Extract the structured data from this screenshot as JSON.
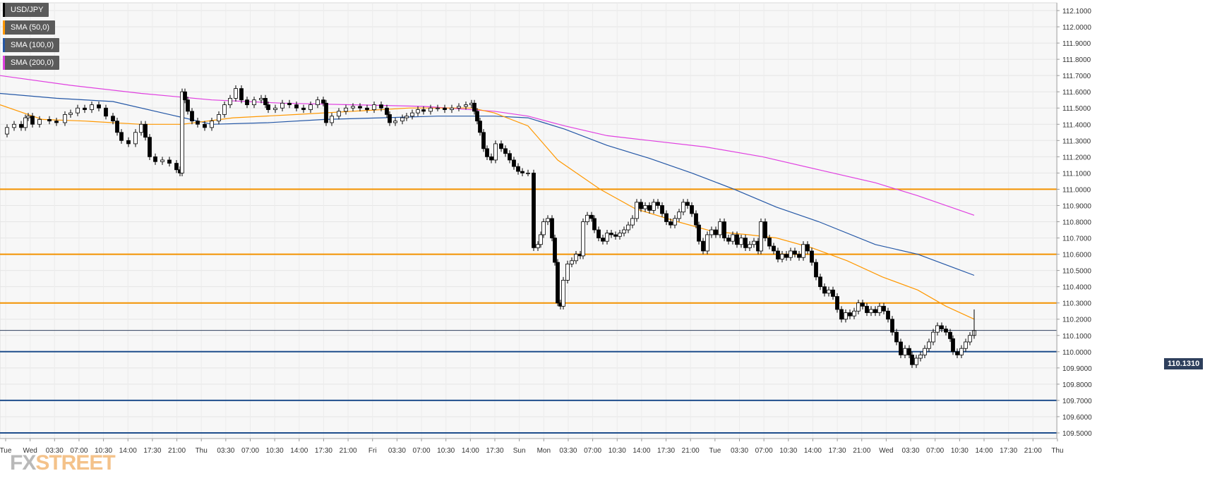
{
  "chart_data": {
    "type": "candlestick",
    "symbol": "USD/JPY",
    "last_price": "110.1310",
    "y_ticks": [
      "112.1000",
      "112.0000",
      "111.9000",
      "111.8000",
      "111.7000",
      "111.6000",
      "111.5000",
      "111.4000",
      "111.3000",
      "111.2000",
      "111.1000",
      "111.0000",
      "110.9000",
      "110.8000",
      "110.7000",
      "110.6000",
      "110.5000",
      "110.4000",
      "110.3000",
      "110.2000",
      "110.1000",
      "110.0000",
      "109.9000",
      "109.8000",
      "109.7000",
      "109.6000",
      "109.5000"
    ],
    "ylim": [
      109.45,
      112.15
    ],
    "x_ticks": [
      "Tue",
      "Wed",
      "03:30",
      "07:00",
      "10:30",
      "14:00",
      "17:30",
      "21:00",
      "Thu",
      "03:30",
      "07:00",
      "10:30",
      "14:00",
      "17:30",
      "21:00",
      "Fri",
      "03:30",
      "07:00",
      "10:30",
      "14:00",
      "17:30",
      "Sun",
      "Mon",
      "03:30",
      "07:00",
      "10:30",
      "14:00",
      "17:30",
      "21:00",
      "Tue",
      "03:30",
      "07:00",
      "10:30",
      "14:00",
      "17:30",
      "21:00",
      "Wed",
      "03:30",
      "07:00",
      "10:30",
      "14:00",
      "17:30",
      "21:00",
      "Thu"
    ],
    "legend": [
      {
        "label": "USD/JPY",
        "color": "#000000"
      },
      {
        "label": "SMA (50,0)",
        "color": "#ff9800"
      },
      {
        "label": "SMA (100,0)",
        "color": "#2457a6"
      },
      {
        "label": "SMA (200,0)",
        "color": "#e040e0"
      }
    ],
    "resistance_levels": [
      111.0,
      110.6,
      110.3
    ],
    "support_levels": [
      110.0,
      109.7,
      109.5
    ],
    "close_path": [
      [
        0,
        111.34
      ],
      [
        10,
        111.38
      ],
      [
        20,
        111.4
      ],
      [
        30,
        111.38
      ],
      [
        36,
        111.44
      ],
      [
        40,
        111.45
      ],
      [
        46,
        111.4
      ],
      [
        56,
        111.43
      ],
      [
        70,
        111.42
      ],
      [
        80,
        111.41
      ],
      [
        92,
        111.46
      ],
      [
        100,
        111.47
      ],
      [
        110,
        111.5
      ],
      [
        120,
        111.49
      ],
      [
        130,
        111.52
      ],
      [
        140,
        111.5
      ],
      [
        150,
        111.45
      ],
      [
        160,
        111.42
      ],
      [
        166,
        111.35
      ],
      [
        172,
        111.3
      ],
      [
        182,
        111.28
      ],
      [
        192,
        111.35
      ],
      [
        200,
        111.4
      ],
      [
        206,
        111.32
      ],
      [
        212,
        111.2
      ],
      [
        220,
        111.17
      ],
      [
        230,
        111.18
      ],
      [
        240,
        111.16
      ],
      [
        250,
        111.12
      ],
      [
        255,
        111.1
      ],
      [
        258,
        111.6
      ],
      [
        262,
        111.55
      ],
      [
        266,
        111.48
      ],
      [
        272,
        111.42
      ],
      [
        280,
        111.4
      ],
      [
        290,
        111.38
      ],
      [
        300,
        111.42
      ],
      [
        310,
        111.46
      ],
      [
        318,
        111.52
      ],
      [
        326,
        111.56
      ],
      [
        334,
        111.62
      ],
      [
        342,
        111.55
      ],
      [
        350,
        111.52
      ],
      [
        360,
        111.55
      ],
      [
        370,
        111.56
      ],
      [
        376,
        111.52
      ],
      [
        380,
        111.49
      ],
      [
        390,
        111.5
      ],
      [
        400,
        111.53
      ],
      [
        410,
        111.52
      ],
      [
        420,
        111.5
      ],
      [
        430,
        111.49
      ],
      [
        440,
        111.52
      ],
      [
        450,
        111.55
      ],
      [
        458,
        111.53
      ],
      [
        462,
        111.41
      ],
      [
        470,
        111.45
      ],
      [
        480,
        111.48
      ],
      [
        490,
        111.5
      ],
      [
        500,
        111.51
      ],
      [
        510,
        111.5
      ],
      [
        520,
        111.49
      ],
      [
        530,
        111.52
      ],
      [
        540,
        111.5
      ],
      [
        548,
        111.46
      ],
      [
        552,
        111.41
      ],
      [
        560,
        111.42
      ],
      [
        570,
        111.44
      ],
      [
        576,
        111.45
      ],
      [
        584,
        111.47
      ],
      [
        592,
        111.49
      ],
      [
        600,
        111.48
      ],
      [
        610,
        111.5
      ],
      [
        620,
        111.5
      ],
      [
        630,
        111.49
      ],
      [
        640,
        111.5
      ],
      [
        650,
        111.51
      ],
      [
        660,
        111.52
      ],
      [
        668,
        111.53
      ],
      [
        672,
        111.48
      ],
      [
        676,
        111.42
      ],
      [
        680,
        111.35
      ],
      [
        685,
        111.25
      ],
      [
        690,
        111.2
      ],
      [
        696,
        111.18
      ],
      [
        702,
        111.28
      ],
      [
        710,
        111.25
      ],
      [
        716,
        111.22
      ],
      [
        722,
        111.18
      ],
      [
        728,
        111.14
      ],
      [
        734,
        111.11
      ],
      [
        740,
        111.1
      ],
      [
        748,
        111.1
      ],
      [
        756,
        110.64
      ],
      [
        762,
        110.66
      ],
      [
        766,
        110.72
      ],
      [
        770,
        110.8
      ],
      [
        776,
        110.82
      ],
      [
        782,
        110.7
      ],
      [
        786,
        110.55
      ],
      [
        790,
        110.3
      ],
      [
        794,
        110.28
      ],
      [
        798,
        110.44
      ],
      [
        804,
        110.54
      ],
      [
        810,
        110.56
      ],
      [
        816,
        110.6
      ],
      [
        822,
        110.59
      ],
      [
        826,
        110.8
      ],
      [
        832,
        110.84
      ],
      [
        838,
        110.82
      ],
      [
        842,
        110.75
      ],
      [
        848,
        110.7
      ],
      [
        854,
        110.68
      ],
      [
        860,
        110.73
      ],
      [
        866,
        110.72
      ],
      [
        872,
        110.71
      ],
      [
        878,
        110.73
      ],
      [
        884,
        110.75
      ],
      [
        890,
        110.78
      ],
      [
        896,
        110.82
      ],
      [
        902,
        110.92
      ],
      [
        908,
        110.88
      ],
      [
        914,
        110.9
      ],
      [
        920,
        110.87
      ],
      [
        926,
        110.92
      ],
      [
        932,
        110.9
      ],
      [
        938,
        110.85
      ],
      [
        944,
        110.8
      ],
      [
        950,
        110.78
      ],
      [
        956,
        110.82
      ],
      [
        962,
        110.86
      ],
      [
        968,
        110.92
      ],
      [
        974,
        110.9
      ],
      [
        980,
        110.85
      ],
      [
        986,
        110.78
      ],
      [
        990,
        110.68
      ],
      [
        996,
        110.62
      ],
      [
        1002,
        110.72
      ],
      [
        1008,
        110.75
      ],
      [
        1014,
        110.72
      ],
      [
        1020,
        110.8
      ],
      [
        1026,
        110.7
      ],
      [
        1032,
        110.68
      ],
      [
        1038,
        110.72
      ],
      [
        1044,
        110.66
      ],
      [
        1050,
        110.7
      ],
      [
        1056,
        110.64
      ],
      [
        1062,
        110.66
      ],
      [
        1068,
        110.68
      ],
      [
        1074,
        110.62
      ],
      [
        1078,
        110.8
      ],
      [
        1084,
        110.7
      ],
      [
        1090,
        110.65
      ],
      [
        1096,
        110.62
      ],
      [
        1102,
        110.57
      ],
      [
        1108,
        110.6
      ],
      [
        1114,
        110.58
      ],
      [
        1120,
        110.62
      ],
      [
        1126,
        110.6
      ],
      [
        1132,
        110.58
      ],
      [
        1138,
        110.66
      ],
      [
        1144,
        110.62
      ],
      [
        1150,
        110.55
      ],
      [
        1156,
        110.46
      ],
      [
        1162,
        110.4
      ],
      [
        1168,
        110.36
      ],
      [
        1174,
        110.38
      ],
      [
        1180,
        110.34
      ],
      [
        1186,
        110.26
      ],
      [
        1192,
        110.2
      ],
      [
        1198,
        110.24
      ],
      [
        1204,
        110.22
      ],
      [
        1210,
        110.25
      ],
      [
        1216,
        110.3
      ],
      [
        1222,
        110.28
      ],
      [
        1228,
        110.24
      ],
      [
        1234,
        110.26
      ],
      [
        1240,
        110.24
      ],
      [
        1246,
        110.28
      ],
      [
        1252,
        110.25
      ],
      [
        1258,
        110.2
      ],
      [
        1264,
        110.12
      ],
      [
        1270,
        110.06
      ],
      [
        1276,
        109.98
      ],
      [
        1282,
        110.02
      ],
      [
        1288,
        109.98
      ],
      [
        1292,
        109.92
      ],
      [
        1298,
        109.96
      ],
      [
        1304,
        109.98
      ],
      [
        1310,
        110.02
      ],
      [
        1316,
        110.06
      ],
      [
        1322,
        110.12
      ],
      [
        1328,
        110.16
      ],
      [
        1334,
        110.14
      ],
      [
        1340,
        110.12
      ],
      [
        1346,
        110.08
      ],
      [
        1350,
        110.0
      ],
      [
        1356,
        109.98
      ],
      [
        1362,
        110.02
      ],
      [
        1368,
        110.06
      ],
      [
        1374,
        110.1
      ],
      [
        1380,
        110.13
      ]
    ],
    "sma_50": [
      [
        0,
        111.52
      ],
      [
        60,
        111.43
      ],
      [
        120,
        111.42
      ],
      [
        200,
        111.4
      ],
      [
        258,
        111.4
      ],
      [
        330,
        111.44
      ],
      [
        420,
        111.46
      ],
      [
        500,
        111.48
      ],
      [
        580,
        111.5
      ],
      [
        668,
        111.5
      ],
      [
        700,
        111.47
      ],
      [
        748,
        111.39
      ],
      [
        790,
        111.18
      ],
      [
        850,
        111.0
      ],
      [
        900,
        110.88
      ],
      [
        960,
        110.8
      ],
      [
        1010,
        110.74
      ],
      [
        1060,
        110.72
      ],
      [
        1100,
        110.7
      ],
      [
        1150,
        110.64
      ],
      [
        1200,
        110.56
      ],
      [
        1250,
        110.46
      ],
      [
        1300,
        110.38
      ],
      [
        1340,
        110.28
      ],
      [
        1380,
        110.2
      ]
    ],
    "sma_100": [
      [
        0,
        111.59
      ],
      [
        80,
        111.56
      ],
      [
        160,
        111.54
      ],
      [
        240,
        111.46
      ],
      [
        300,
        111.4
      ],
      [
        380,
        111.41
      ],
      [
        460,
        111.43
      ],
      [
        540,
        111.44
      ],
      [
        620,
        111.45
      ],
      [
        700,
        111.45
      ],
      [
        748,
        111.44
      ],
      [
        800,
        111.37
      ],
      [
        860,
        111.27
      ],
      [
        920,
        111.19
      ],
      [
        980,
        111.1
      ],
      [
        1040,
        111.0
      ],
      [
        1100,
        110.89
      ],
      [
        1160,
        110.8
      ],
      [
        1240,
        110.66
      ],
      [
        1300,
        110.6
      ],
      [
        1380,
        110.47
      ]
    ],
    "sma_200": [
      [
        0,
        111.7
      ],
      [
        100,
        111.64
      ],
      [
        200,
        111.59
      ],
      [
        300,
        111.55
      ],
      [
        400,
        111.53
      ],
      [
        500,
        111.52
      ],
      [
        600,
        111.51
      ],
      [
        700,
        111.48
      ],
      [
        748,
        111.45
      ],
      [
        800,
        111.39
      ],
      [
        860,
        111.33
      ],
      [
        920,
        111.3
      ],
      [
        1000,
        111.26
      ],
      [
        1080,
        111.2
      ],
      [
        1160,
        111.12
      ],
      [
        1240,
        111.04
      ],
      [
        1300,
        110.96
      ],
      [
        1380,
        110.84
      ]
    ]
  },
  "watermark": {
    "left": "FX",
    "right": "STREET"
  }
}
